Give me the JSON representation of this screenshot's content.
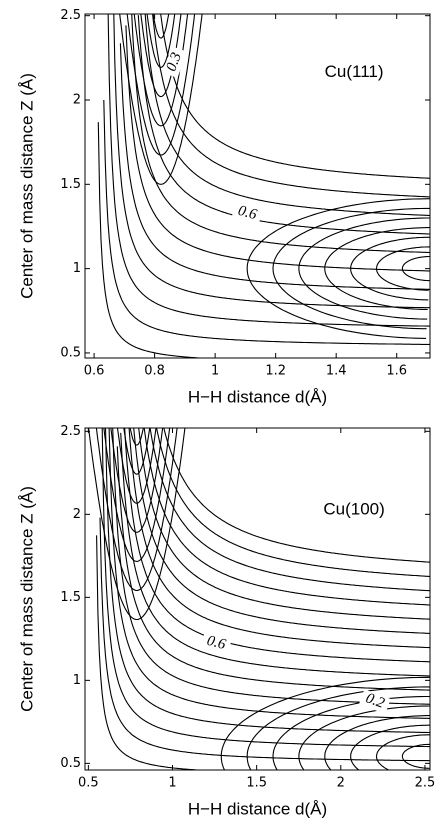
{
  "chart_data": [
    {
      "type": "contour",
      "annotation": "Cu(111)",
      "xlabel": "H−H distance d(Å)",
      "ylabel": "Center of mass distance Z (Å)",
      "xlim": [
        0.57,
        1.71
      ],
      "ylim": [
        0.47,
        2.51
      ],
      "xticks": [
        0.6,
        0.8,
        1,
        1.2,
        1.4,
        1.6
      ],
      "yticks": [
        0.5,
        1,
        1.5,
        2,
        2.5
      ],
      "contour_labels": [
        0.3,
        0.6
      ],
      "color": "#000000"
    },
    {
      "type": "contour",
      "annotation": "Cu(100)",
      "xlabel": "H−H distance d(Å)",
      "ylabel": "Center of mass distance Z (Å)",
      "xlim": [
        0.48,
        2.53
      ],
      "ylim": [
        0.46,
        2.52
      ],
      "xticks": [
        0.5,
        1,
        1.5,
        2,
        2.5
      ],
      "yticks": [
        0.5,
        1,
        1.5,
        2,
        2.5
      ],
      "contour_labels": [
        0.6,
        0.2
      ],
      "color": "#000000"
    }
  ]
}
